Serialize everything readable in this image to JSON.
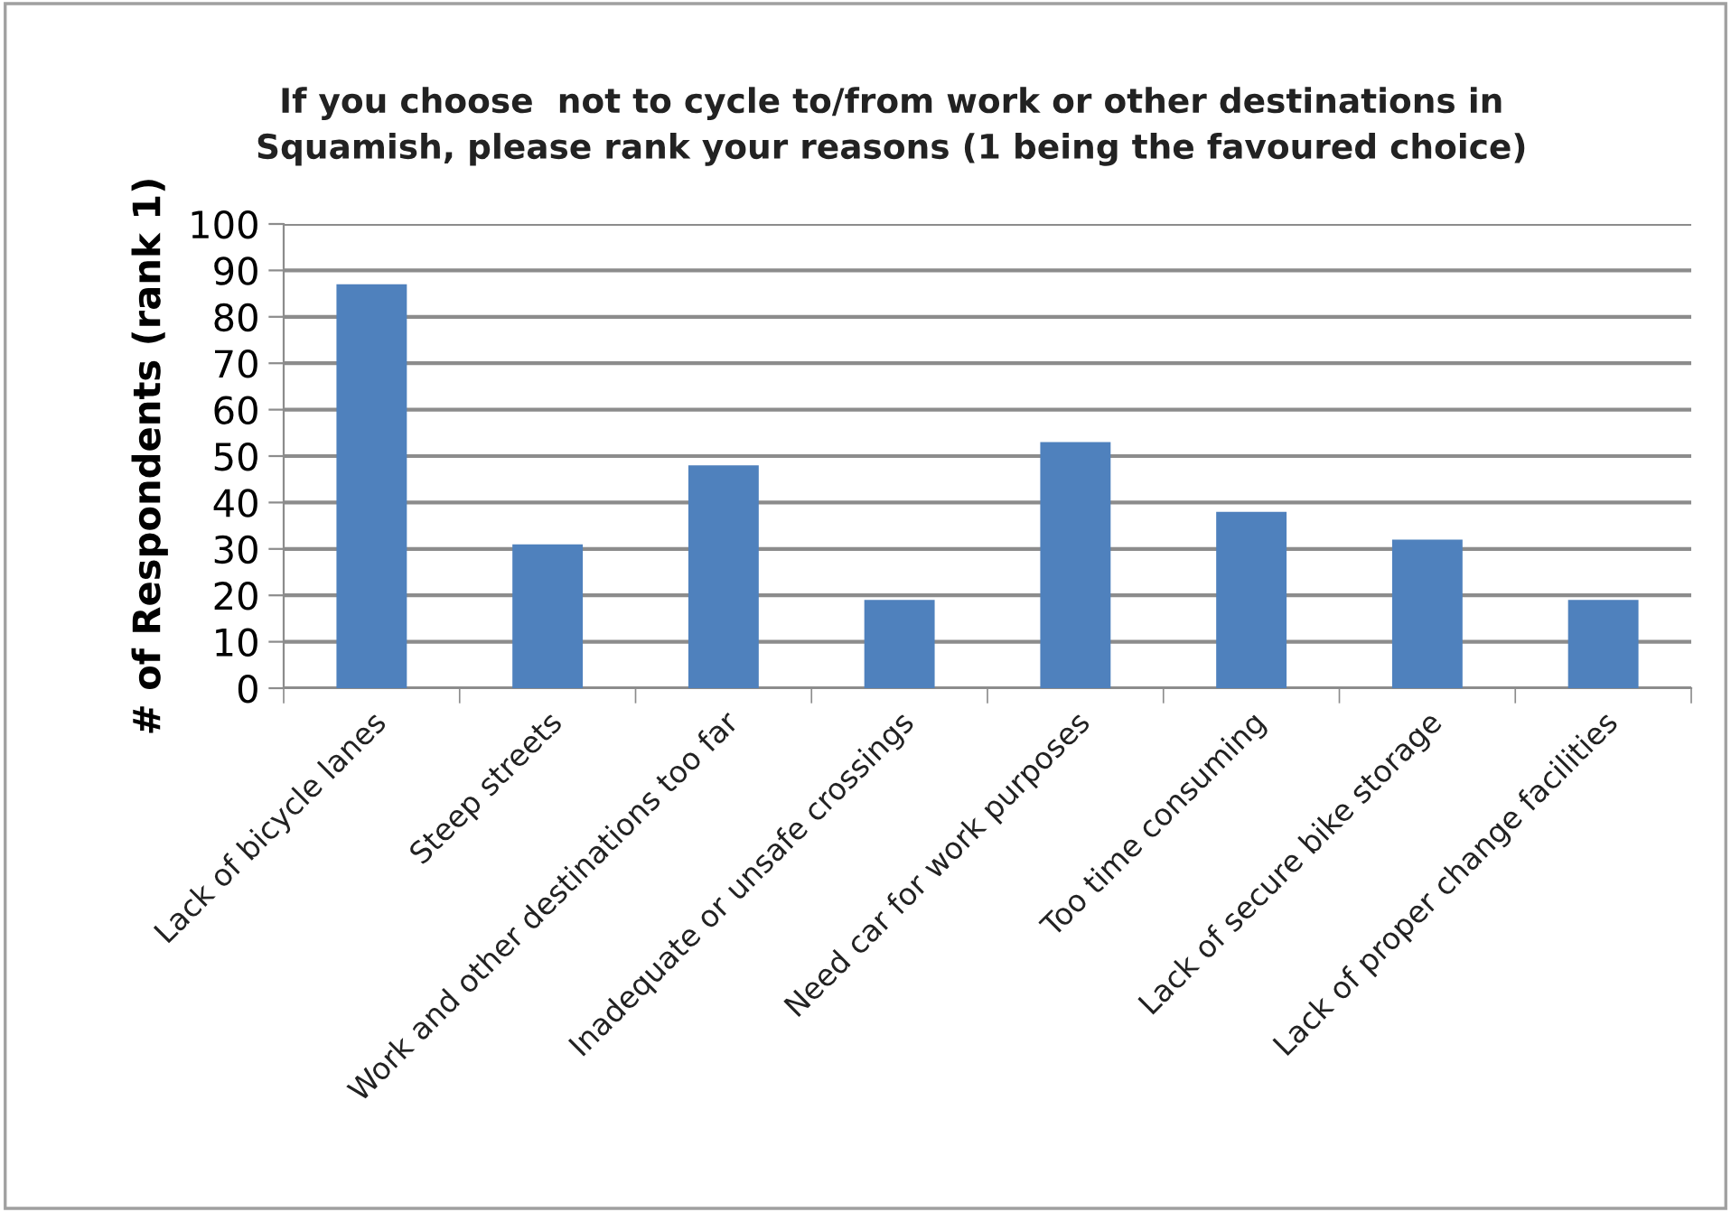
{
  "chart_data": {
    "type": "bar",
    "title": "If you choose  not to cycle to/from work or other destinations in\nSquamish, please rank your reasons (1 being the favoured choice)",
    "ylabel": "# of Respondents (rank 1)",
    "categories": [
      "Lack of bicycle lanes",
      "Steep streets",
      "Work and other destinations too far",
      "Inadequate or unsafe crossings",
      "Need car for work purposes",
      "Too time consuming",
      "Lack of secure bike storage",
      "Lack of proper change facilities"
    ],
    "values": [
      87,
      31,
      48,
      19,
      53,
      38,
      32,
      19
    ],
    "color": "#4f81bd",
    "ylim": [
      0,
      100
    ],
    "yticks": [
      0,
      10,
      20,
      30,
      40,
      50,
      60,
      70,
      80,
      90,
      100
    ],
    "grid": "y"
  }
}
